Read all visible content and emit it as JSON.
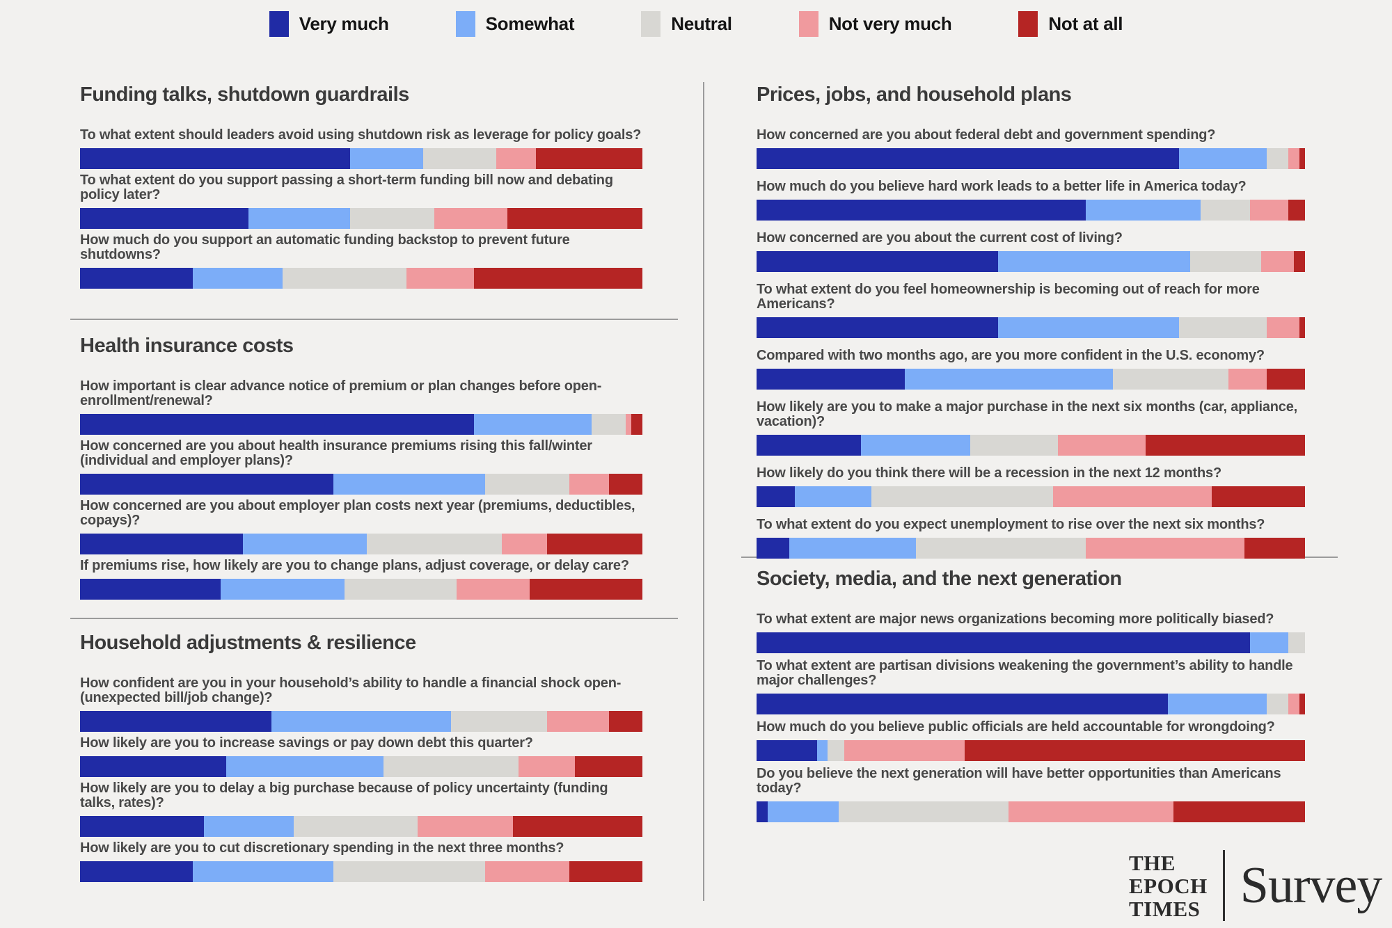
{
  "page": {
    "background": "#f2f1ef"
  },
  "chart_data": {
    "type": "bar",
    "stacked": true,
    "orientation": "horizontal",
    "unit": "percent-of-bar-width",
    "grid": false,
    "legend_position": "top-center",
    "categories": [
      "Very much",
      "Somewhat",
      "Neutral",
      "Not very much",
      "Not at all"
    ],
    "colors": [
      "#202ba5",
      "#7cadf8",
      "#d8d7d3",
      "#f09a9e",
      "#b52524"
    ],
    "groups": [
      {
        "title": "Funding talks, shutdown guardrails",
        "column": "left",
        "questions": [
          {
            "label": "To what extent should leaders avoid using shutdown risk as leverage for policy goals?",
            "values": [
              48,
              13,
              13,
              7,
              19
            ]
          },
          {
            "label": "To what extent do you support passing a short-term funding bill now and debating policy later?",
            "values": [
              30,
              18,
              15,
              13,
              24
            ]
          },
          {
            "label": "How much do you support an automatic funding backstop to prevent future shutdowns?",
            "values": [
              20,
              16,
              22,
              12,
              30
            ]
          }
        ]
      },
      {
        "title": "Health insurance costs",
        "column": "left",
        "questions": [
          {
            "label": "How important is clear advance notice of premium or plan changes before open-enrollment/renewal?",
            "values": [
              70,
              21,
              6,
              1,
              2
            ]
          },
          {
            "label": "How concerned are you about health insurance premiums rising this fall/winter (individual and employer plans)?",
            "values": [
              45,
              27,
              15,
              7,
              6
            ]
          },
          {
            "label": "How concerned are you about employer plan costs next year (premiums, deductibles, copays)?",
            "values": [
              29,
              22,
              24,
              8,
              17
            ]
          },
          {
            "label": "If premiums rise, how likely are you to change plans, adjust coverage, or delay care?",
            "values": [
              25,
              22,
              20,
              13,
              20
            ]
          }
        ]
      },
      {
        "title": "Household adjustments & resilience",
        "column": "left",
        "questions": [
          {
            "label": "How confident are you in your household’s ability to handle a financial shock open- (unexpected bill/job change)?",
            "values": [
              34,
              32,
              17,
              11,
              6
            ]
          },
          {
            "label": "How likely are you to increase savings or pay down debt this quarter?",
            "values": [
              26,
              28,
              24,
              10,
              12
            ]
          },
          {
            "label": "How likely are you to delay a big purchase because of policy uncertainty (funding talks, rates)?",
            "values": [
              22,
              16,
              22,
              17,
              23
            ]
          },
          {
            "label": "How likely are you to cut discretionary spending in the next three months?",
            "values": [
              20,
              25,
              27,
              15,
              13
            ]
          }
        ]
      },
      {
        "title": "Prices, jobs, and household plans",
        "column": "right",
        "questions": [
          {
            "label": "How concerned are you about federal debt and government spending?",
            "values": [
              77,
              16,
              4,
              2,
              1
            ]
          },
          {
            "label": "How much do you believe hard work leads to a better life in America today?",
            "values": [
              60,
              21,
              9,
              7,
              3
            ]
          },
          {
            "label": "How concerned are you about the current cost of living?",
            "values": [
              44,
              35,
              13,
              6,
              2
            ]
          },
          {
            "label": "To what extent do you feel homeownership is becoming out of reach for more Americans?",
            "values": [
              44,
              33,
              16,
              6,
              1
            ]
          },
          {
            "label": "Compared with two months ago, are you more confident in the U.S. economy?",
            "values": [
              27,
              38,
              21,
              7,
              7
            ]
          },
          {
            "label": "How likely are you to make a major purchase in the next six months (car, appliance, vacation)?",
            "values": [
              19,
              20,
              16,
              16,
              29
            ]
          },
          {
            "label": "How likely do you think there will be a recession in the next 12 months?",
            "values": [
              7,
              14,
              33,
              29,
              17
            ]
          },
          {
            "label": "To what extent do you expect unemployment to rise over the next six months?",
            "values": [
              6,
              23,
              31,
              29,
              11
            ]
          }
        ]
      },
      {
        "title": "Society, media, and the next generation",
        "column": "right",
        "questions": [
          {
            "label": "To what extent are major news organizations becoming more politically biased?",
            "values": [
              90,
              7,
              3,
              0,
              0
            ]
          },
          {
            "label": "To what extent are partisan divisions weakening the government’s ability to handle major challenges?",
            "values": [
              75,
              18,
              4,
              2,
              1
            ]
          },
          {
            "label": "How much do you believe public officials are held accountable for wrongdoing?",
            "values": [
              11,
              2,
              3,
              22,
              62
            ]
          },
          {
            "label": "Do you believe the next generation will have better opportunities than Americans today?",
            "values": [
              2,
              13,
              31,
              30,
              24
            ]
          }
        ]
      }
    ]
  },
  "branding": {
    "publisher_lines": [
      "THE",
      "EPOCH",
      "TIMES"
    ],
    "product": "Survey"
  }
}
